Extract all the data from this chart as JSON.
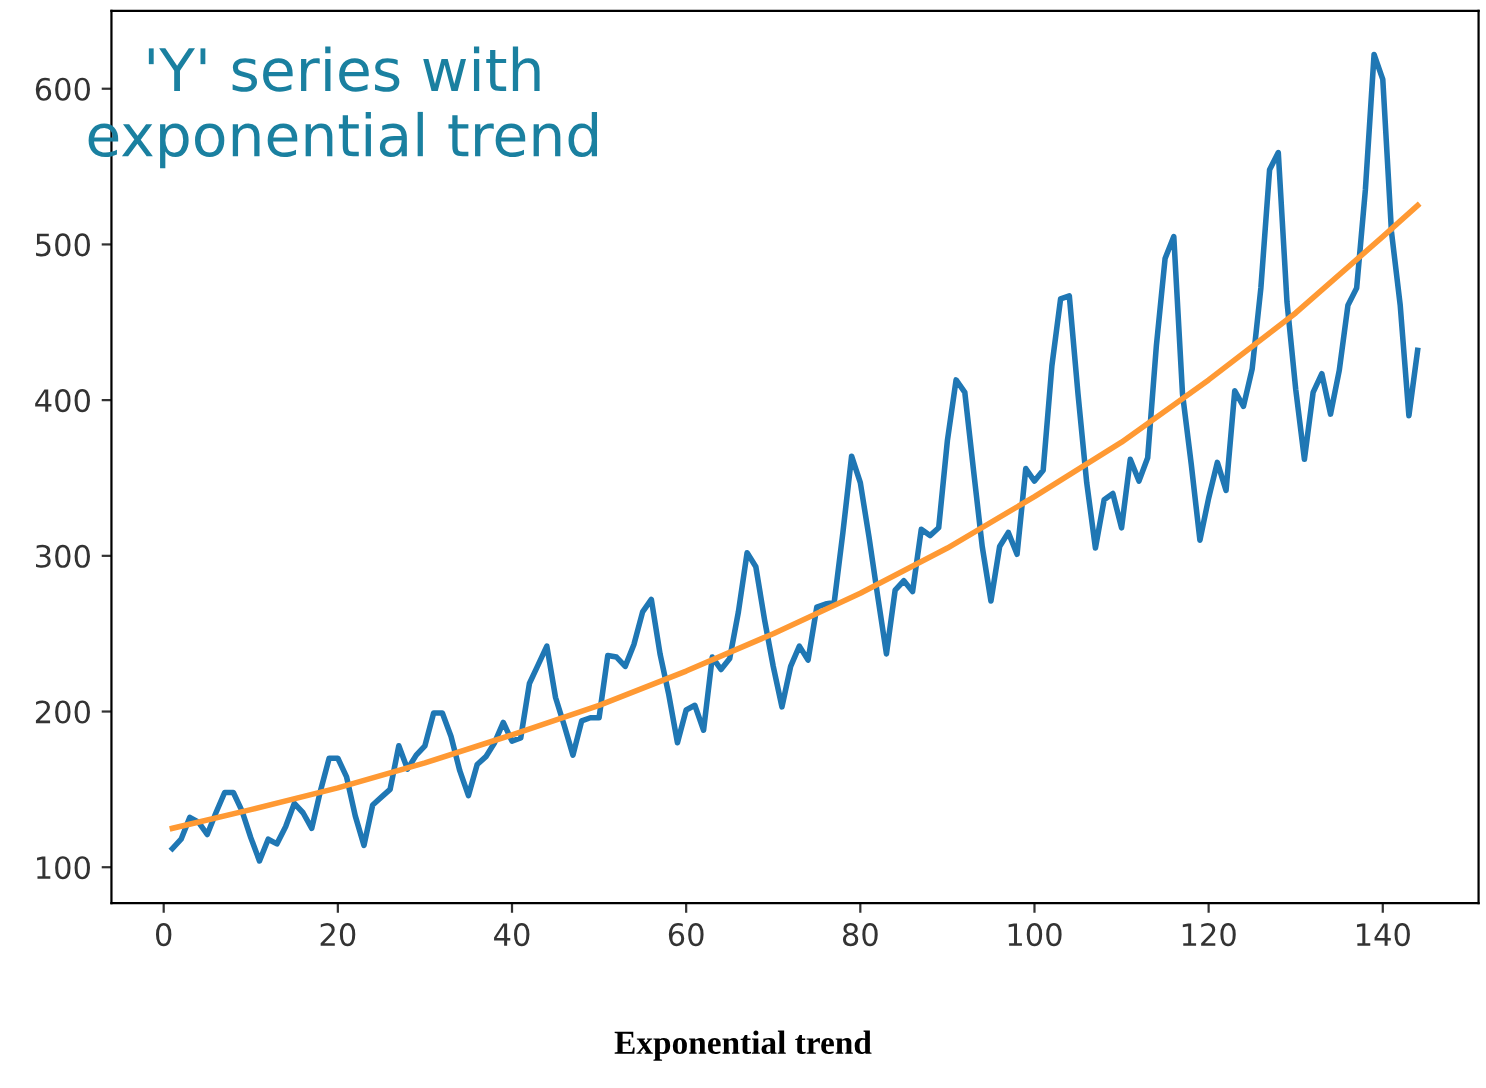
{
  "chart_data": {
    "type": "line",
    "title": "'Y' series with\nexponential trend",
    "annotations": [
      "Exponential trend"
    ],
    "xlim": [
      -6,
      151
    ],
    "ylim": [
      77,
      650
    ],
    "xticks": [
      0,
      20,
      40,
      60,
      80,
      100,
      120,
      140
    ],
    "yticks": [
      100,
      200,
      300,
      400,
      500,
      600
    ],
    "grid": false,
    "legend": false,
    "series": [
      {
        "color": "#1f77b4",
        "x": [
          1,
          2,
          3,
          4,
          5,
          6,
          7,
          8,
          9,
          10,
          11,
          12,
          13,
          14,
          15,
          16,
          17,
          18,
          19,
          20,
          21,
          22,
          23,
          24,
          25,
          26,
          27,
          28,
          29,
          30,
          31,
          32,
          33,
          34,
          35,
          36,
          37,
          38,
          39,
          40,
          41,
          42,
          43,
          44,
          45,
          46,
          47,
          48,
          49,
          50,
          51,
          52,
          53,
          54,
          55,
          56,
          57,
          58,
          59,
          60,
          61,
          62,
          63,
          64,
          65,
          66,
          67,
          68,
          69,
          70,
          71,
          72,
          73,
          74,
          75,
          76,
          77,
          78,
          79,
          80,
          81,
          82,
          83,
          84,
          85,
          86,
          87,
          88,
          89,
          90,
          91,
          92,
          93,
          94,
          95,
          96,
          97,
          98,
          99,
          100,
          101,
          102,
          103,
          104,
          105,
          106,
          107,
          108,
          109,
          110,
          111,
          112,
          113,
          114,
          115,
          116,
          117,
          118,
          119,
          120,
          121,
          122,
          123,
          124,
          125,
          126,
          127,
          128,
          129,
          130,
          131,
          132,
          133,
          134,
          135,
          136,
          137,
          138,
          139,
          140,
          141,
          142,
          143,
          144
        ],
        "values": [
          112,
          118,
          132,
          129,
          121,
          135,
          148,
          148,
          136,
          119,
          104,
          118,
          115,
          126,
          141,
          135,
          125,
          149,
          170,
          170,
          158,
          133,
          114,
          140,
          145,
          150,
          178,
          163,
          172,
          178,
          199,
          199,
          184,
          162,
          146,
          166,
          171,
          180,
          193,
          181,
          183,
          218,
          230,
          242,
          209,
          191,
          172,
          194,
          196,
          196,
          236,
          235,
          229,
          243,
          264,
          272,
          237,
          211,
          180,
          201,
          204,
          188,
          235,
          227,
          234,
          264,
          302,
          293,
          259,
          229,
          203,
          229,
          242,
          233,
          267,
          269,
          270,
          315,
          364,
          347,
          312,
          274,
          237,
          278,
          284,
          277,
          317,
          313,
          318,
          374,
          413,
          405,
          355,
          306,
          271,
          306,
          315,
          301,
          356,
          348,
          355,
          422,
          465,
          467,
          404,
          347,
          305,
          336,
          340,
          318,
          362,
          348,
          363,
          435,
          491,
          505,
          404,
          359,
          310,
          337,
          360,
          342,
          406,
          396,
          420,
          472,
          548,
          559,
          463,
          407,
          362,
          405,
          417,
          391,
          419,
          461,
          472,
          535,
          622,
          606,
          508,
          461,
          390,
          432
        ]
      },
      {
        "color": "#ff9933",
        "x": [
          1,
          10,
          20,
          30,
          40,
          50,
          60,
          70,
          80,
          90,
          100,
          110,
          120,
          130,
          140,
          144
        ],
        "values": [
          125,
          137,
          151,
          167,
          185,
          204,
          226,
          250,
          276,
          305,
          338,
          373,
          413,
          456,
          505,
          525
        ]
      }
    ]
  }
}
